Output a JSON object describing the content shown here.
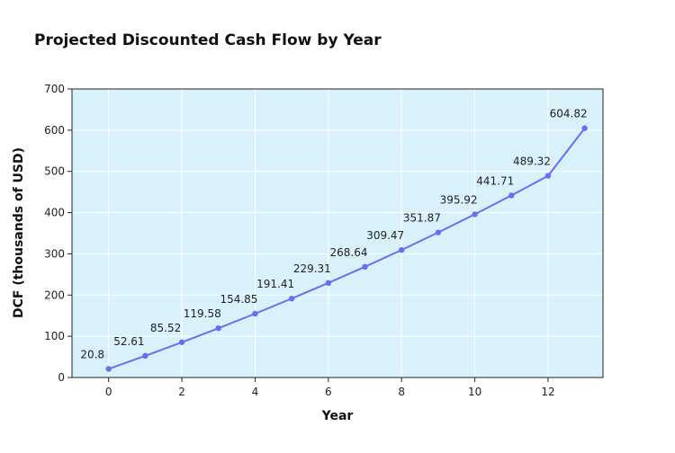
{
  "chart_data": {
    "type": "line",
    "title": "Projected Discounted Cash Flow by Year",
    "xlabel": "Year",
    "ylabel": "DCF (thousands of USD)",
    "xlim": [
      -1,
      13.5
    ],
    "ylim": [
      0,
      700
    ],
    "x_ticks": [
      0,
      2,
      4,
      6,
      8,
      10,
      12
    ],
    "y_ticks": [
      0,
      100,
      200,
      300,
      400,
      500,
      600,
      700
    ],
    "grid": true,
    "legend": "none",
    "colors": {
      "plot_bg": "#d9f1fb",
      "line": "#6a6ef0",
      "grid": "#ffffff",
      "axis": "#222222"
    },
    "series": [
      {
        "x": [
          0,
          1,
          2,
          3,
          4,
          5,
          6,
          7,
          8,
          9,
          10,
          11,
          12,
          13
        ],
        "values": [
          20.8,
          52.61,
          85.52,
          119.58,
          154.85,
          191.41,
          229.31,
          268.64,
          309.47,
          351.87,
          395.92,
          441.71,
          489.32,
          604.82
        ],
        "labels": [
          "20.8",
          "52.61",
          "85.52",
          "119.58",
          "154.85",
          "191.41",
          "229.31",
          "268.64",
          "309.47",
          "351.87",
          "395.92",
          "441.71",
          "489.32",
          "604.82"
        ]
      }
    ]
  }
}
